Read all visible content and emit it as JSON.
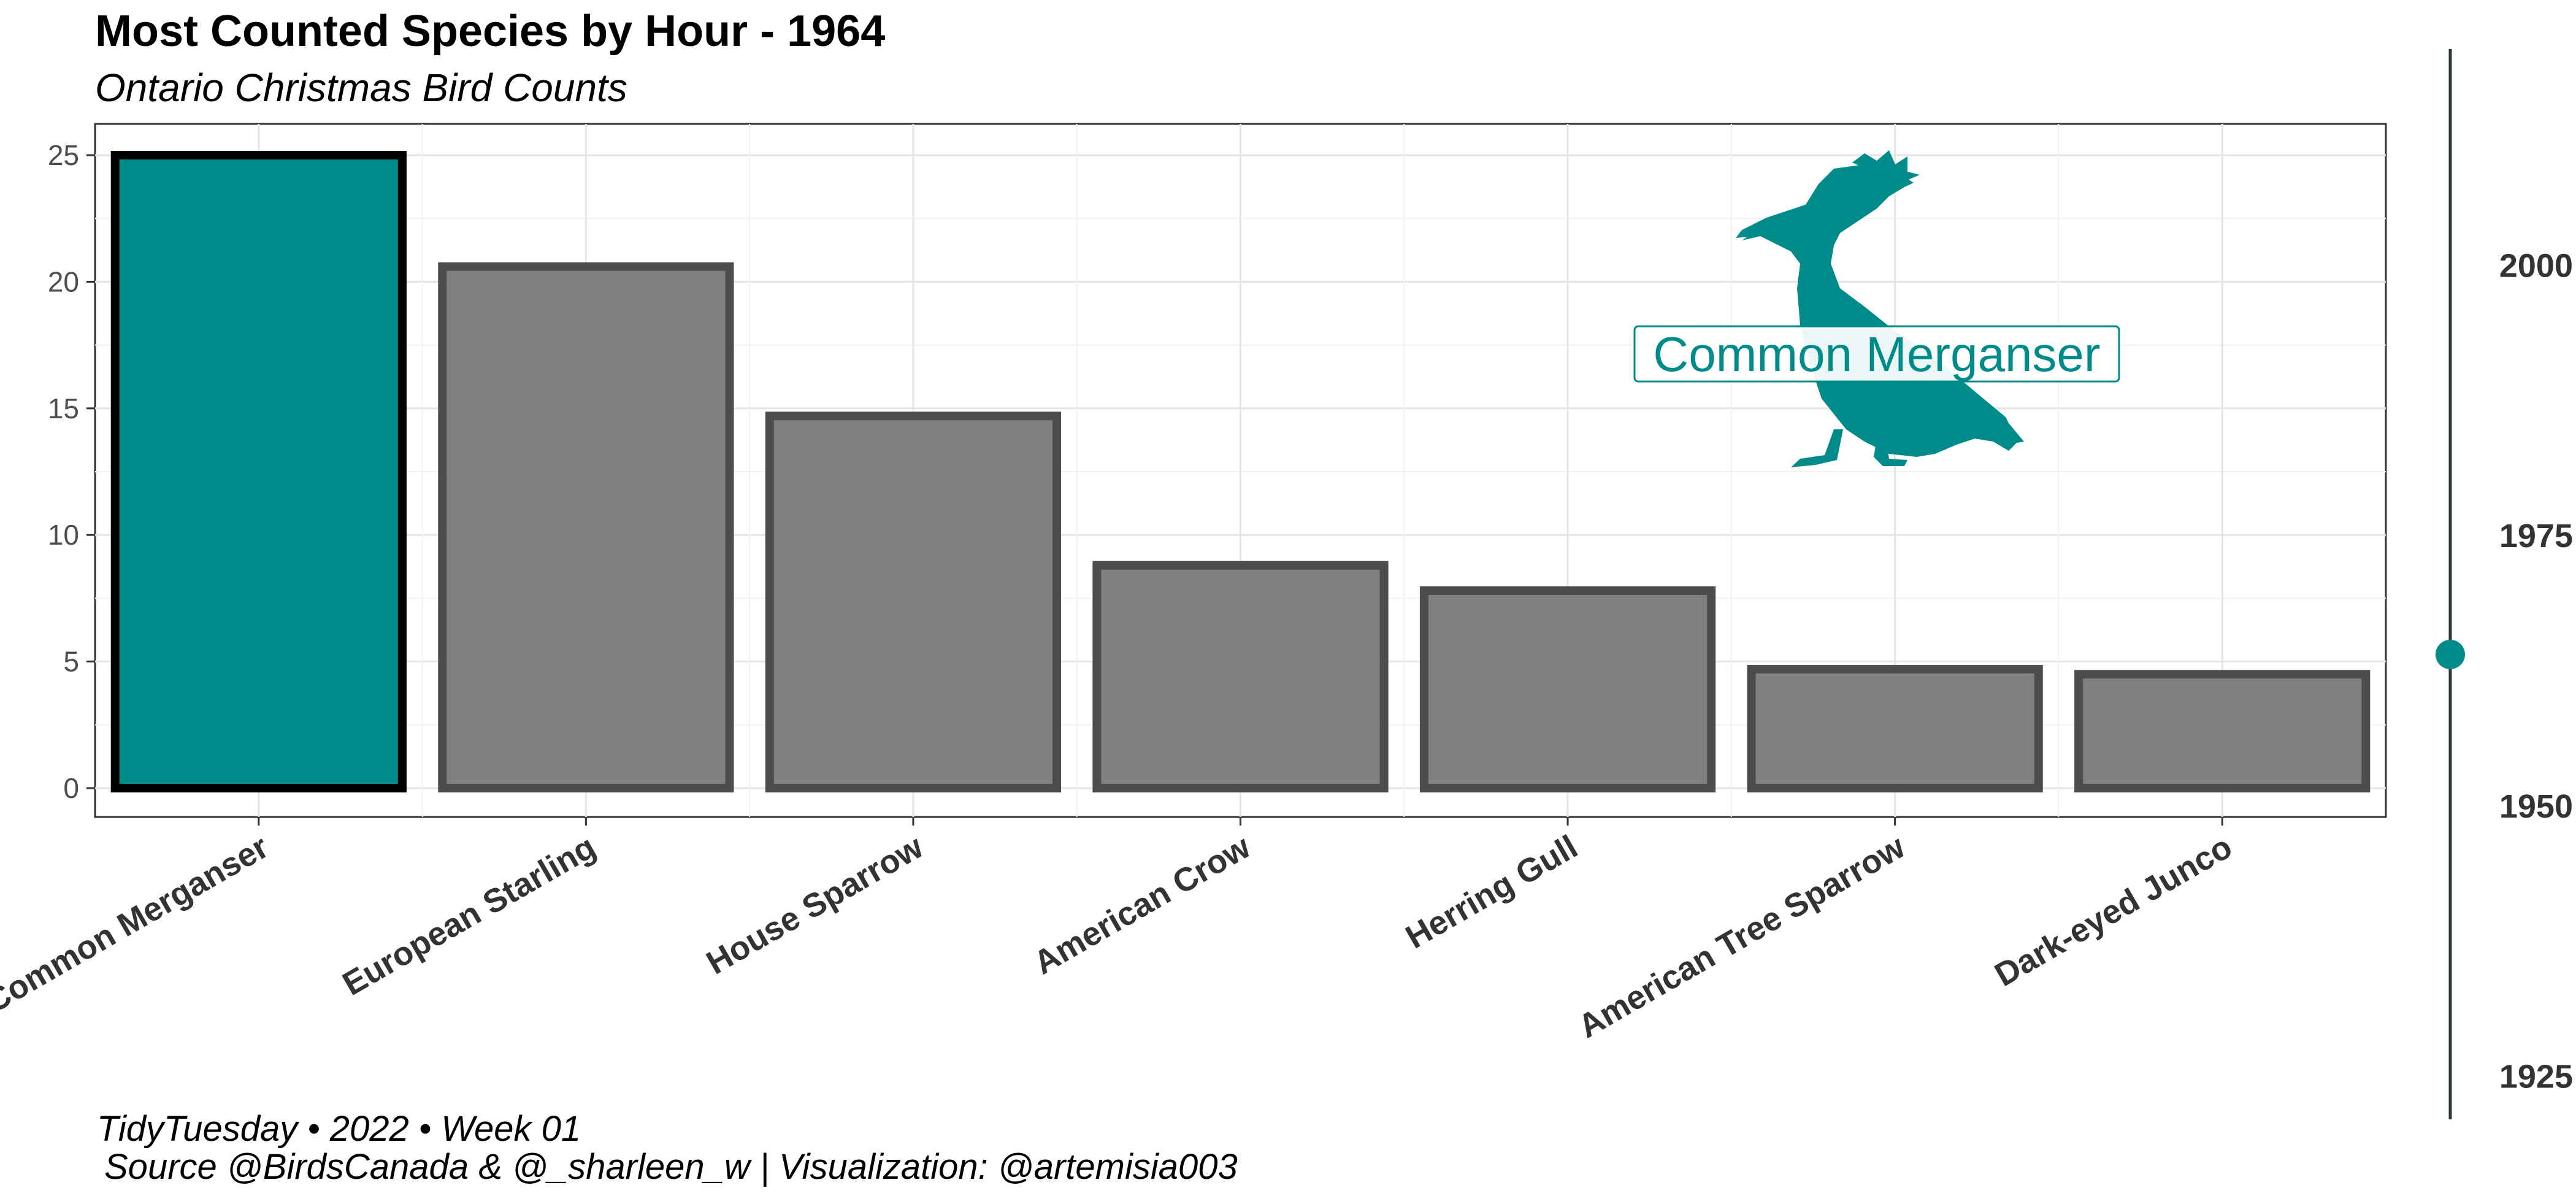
{
  "chart_data": {
    "type": "bar",
    "title": "Most Counted Species by Hour - 1964",
    "subtitle": "Ontario Christmas Bird Counts",
    "categories": [
      "Common Merganser",
      "European Starling",
      "House Sparrow",
      "American Crow",
      "Herring Gull",
      "American Tree Sparrow",
      "Dark-eyed Junco"
    ],
    "values": [
      25.0,
      20.6,
      14.7,
      8.8,
      7.8,
      4.7,
      4.5
    ],
    "highlight_index": 0,
    "ylim": [
      0,
      26.2
    ],
    "yticks": [
      0,
      5,
      10,
      15,
      20,
      25
    ],
    "xlabel": "",
    "ylabel": "",
    "grid": true,
    "annotation": "Common Merganser",
    "timeline": {
      "range": [
        1921,
        2020
      ],
      "ticks": [
        1925,
        1950,
        1975,
        2000
      ],
      "current": 1964
    },
    "caption_line1": "TidyTuesday • 2022 • Week 01",
    "caption_line2": "Source @BirdsCanada & @_sharleen_w  |  Visualization: @artemisia003",
    "colors": {
      "highlight": "#008b8b",
      "bar": "#808080",
      "bar_border": "#4d4d4d",
      "highlight_border": "#000000",
      "timeline_line": "#2f3a2f",
      "timeline_dot": "#008b8b"
    }
  }
}
